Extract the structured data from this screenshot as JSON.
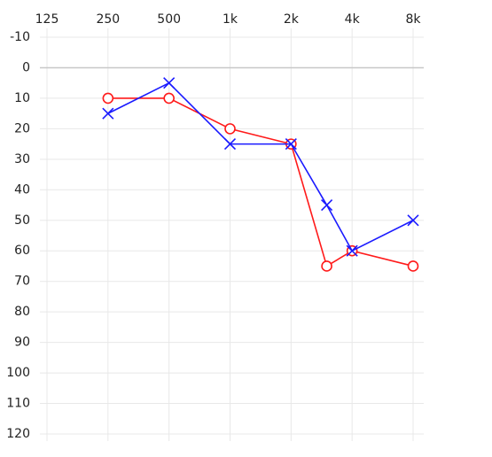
{
  "chart_data": {
    "type": "audiogram",
    "x": [
      250,
      500,
      1000,
      2000,
      3000,
      4000,
      8000
    ],
    "xlim": [
      125,
      8000
    ],
    "xscale": "log2",
    "xticks": [
      125,
      250,
      500,
      {
        "value": 1000,
        "label": "1k"
      },
      {
        "value": 2000,
        "label": "2k"
      },
      {
        "value": 4000,
        "label": "4k"
      },
      {
        "value": 8000,
        "label": "8k"
      }
    ],
    "ylim": [
      -10,
      120
    ],
    "yinverted": true,
    "yticks": [
      -10,
      0,
      10,
      20,
      30,
      40,
      50,
      60,
      70,
      80,
      90,
      100,
      110,
      120
    ],
    "grid": true,
    "series": [
      {
        "color": "#ff1a1a",
        "marker": "o",
        "values": [
          10,
          10,
          20,
          25,
          65,
          60,
          65
        ]
      },
      {
        "color": "#1a1aff",
        "marker": "x",
        "values": [
          15,
          5,
          25,
          25,
          45,
          60,
          50
        ]
      }
    ]
  }
}
